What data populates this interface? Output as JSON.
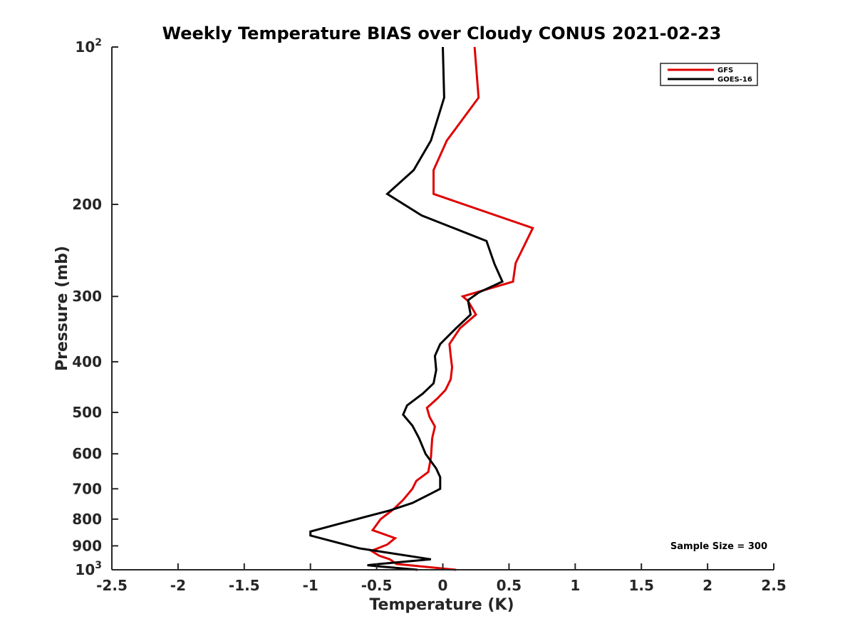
{
  "chart_data": {
    "type": "line",
    "title": "Weekly Temperature BIAS over Cloudy CONUS 2021-02-23",
    "xlabel": "Temperature (K)",
    "ylabel": "Pressure (mb)",
    "xlim": [
      -2.5,
      2.5
    ],
    "ylim": [
      100,
      1000
    ],
    "y_scale": "log",
    "y_reversed": true,
    "grid": false,
    "legend": "top-right",
    "x_ticks": [
      {
        "value": -2.5,
        "label": "-2.5"
      },
      {
        "value": -2,
        "label": "-2"
      },
      {
        "value": -1.5,
        "label": "-1.5"
      },
      {
        "value": -1,
        "label": "-1"
      },
      {
        "value": -0.5,
        "label": "-0.5"
      },
      {
        "value": 0,
        "label": "0"
      },
      {
        "value": 0.5,
        "label": "0.5"
      },
      {
        "value": 1,
        "label": "1"
      },
      {
        "value": 1.5,
        "label": "1.5"
      },
      {
        "value": 2,
        "label": "2"
      },
      {
        "value": 2.5,
        "label": "2.5"
      }
    ],
    "y_ticks": [
      {
        "value": 100,
        "label": "10",
        "sup": "2"
      },
      {
        "value": 200,
        "label": "200"
      },
      {
        "value": 300,
        "label": "300"
      },
      {
        "value": 400,
        "label": "400"
      },
      {
        "value": 500,
        "label": "500"
      },
      {
        "value": 600,
        "label": "600"
      },
      {
        "value": 700,
        "label": "700"
      },
      {
        "value": 800,
        "label": "800"
      },
      {
        "value": 900,
        "label": "900"
      },
      {
        "value": 1000,
        "label": "10",
        "sup": "3"
      }
    ],
    "series": [
      {
        "name": "GFS",
        "color": "#e00000",
        "points": [
          [
            0.24,
            100
          ],
          [
            0.27,
            125
          ],
          [
            0.03,
            151
          ],
          [
            -0.07,
            172
          ],
          [
            -0.07,
            191
          ],
          [
            0.68,
            222
          ],
          [
            0.55,
            259
          ],
          [
            0.53,
            281
          ],
          [
            0.15,
            300
          ],
          [
            0.19,
            306
          ],
          [
            0.25,
            325
          ],
          [
            0.13,
            345
          ],
          [
            0.05,
            370
          ],
          [
            0.06,
            390
          ],
          [
            0.07,
            410
          ],
          [
            0.06,
            432
          ],
          [
            0.02,
            453
          ],
          [
            -0.04,
            470
          ],
          [
            -0.12,
            490
          ],
          [
            -0.1,
            510
          ],
          [
            -0.06,
            532
          ],
          [
            -0.08,
            560
          ],
          [
            -0.09,
            610
          ],
          [
            -0.11,
            650
          ],
          [
            -0.2,
            676
          ],
          [
            -0.23,
            700
          ],
          [
            -0.3,
            735
          ],
          [
            -0.37,
            765
          ],
          [
            -0.47,
            800
          ],
          [
            -0.53,
            840
          ],
          [
            -0.36,
            870
          ],
          [
            -0.42,
            895
          ],
          [
            -0.54,
            920
          ],
          [
            -0.48,
            940
          ],
          [
            -0.4,
            955
          ],
          [
            -0.35,
            975
          ],
          [
            0.1,
            1000
          ]
        ]
      },
      {
        "name": "GOES-16",
        "color": "#000000",
        "points": [
          [
            0.0,
            100
          ],
          [
            0.01,
            125
          ],
          [
            -0.09,
            151
          ],
          [
            -0.22,
            172
          ],
          [
            -0.42,
            191
          ],
          [
            -0.16,
            210
          ],
          [
            0.33,
            235
          ],
          [
            0.39,
            260
          ],
          [
            0.45,
            281
          ],
          [
            0.27,
            295
          ],
          [
            0.19,
            305
          ],
          [
            0.2,
            315
          ],
          [
            0.21,
            325
          ],
          [
            0.1,
            345
          ],
          [
            -0.02,
            370
          ],
          [
            -0.06,
            390
          ],
          [
            -0.05,
            415
          ],
          [
            -0.07,
            440
          ],
          [
            -0.15,
            460
          ],
          [
            -0.27,
            485
          ],
          [
            -0.3,
            505
          ],
          [
            -0.23,
            530
          ],
          [
            -0.18,
            560
          ],
          [
            -0.13,
            600
          ],
          [
            -0.05,
            640
          ],
          [
            -0.02,
            665
          ],
          [
            -0.02,
            700
          ],
          [
            -0.09,
            715
          ],
          [
            -0.23,
            745
          ],
          [
            -0.4,
            770
          ],
          [
            -0.65,
            800
          ],
          [
            -0.77,
            815
          ],
          [
            -1.0,
            845
          ],
          [
            -1.0,
            860
          ],
          [
            -0.63,
            910
          ],
          [
            -0.09,
            955
          ],
          [
            -0.48,
            975
          ],
          [
            -0.57,
            980
          ],
          [
            -0.48,
            985
          ],
          [
            -0.19,
            1000
          ]
        ]
      }
    ],
    "annotations": [
      {
        "text": "Sample Size = 300"
      }
    ]
  }
}
